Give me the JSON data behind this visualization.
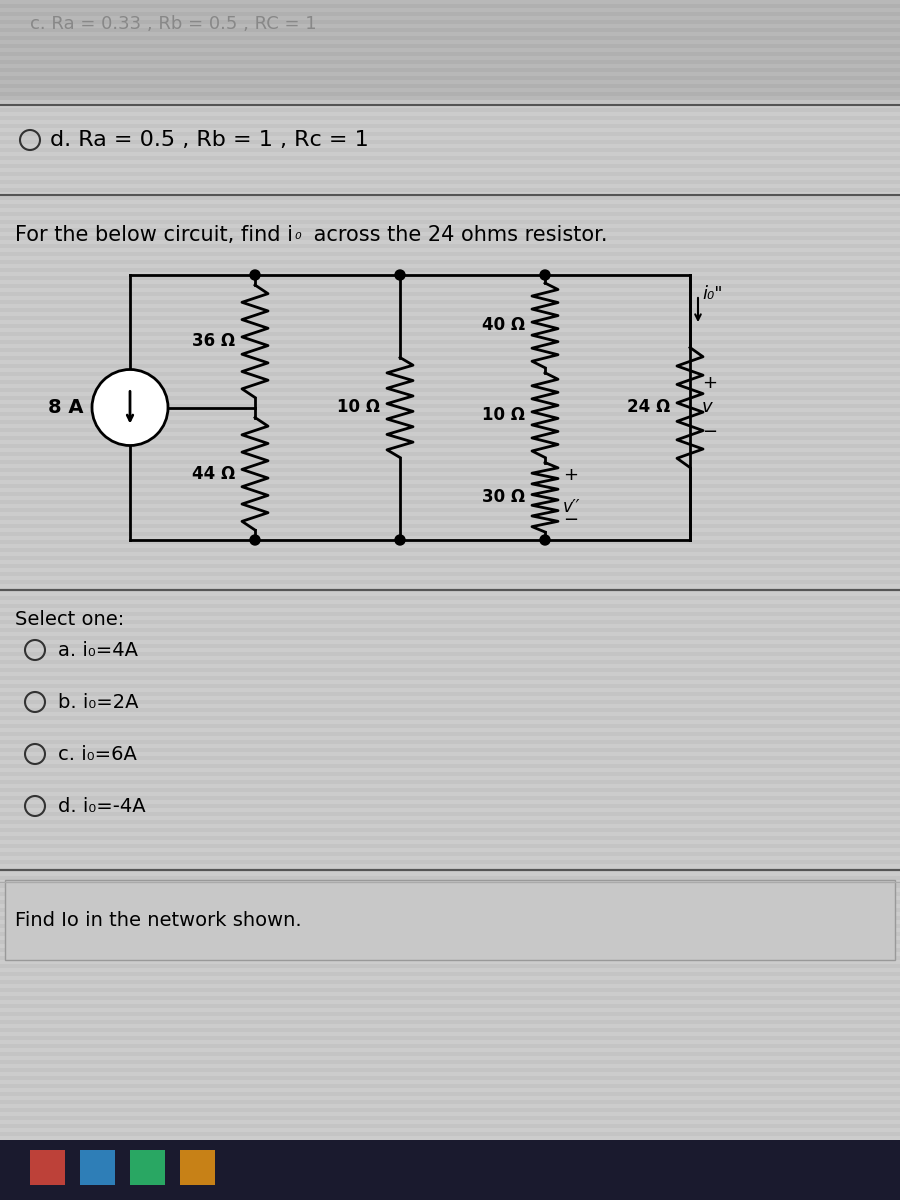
{
  "bg_color": "#c8c8c8",
  "bg_stripe_color": "#d0d0d0",
  "text_color": "#000000",
  "top_text_partial": "c. Ra = 0.33 , Rb = 0.5 , RC = 1",
  "top_option_text": "d. Ra = 0.5 , Rb = 1 , Rc = 1",
  "question_text": "For the below circuit, find i₀ across the 24 ohms resistor.",
  "select_one_text": "Select one:",
  "options": [
    "a. i₀=4A",
    "b. i₀=2A",
    "c. i₀=6A",
    "d. i₀=-4A"
  ],
  "footer_text": "Find Io in the network shown.",
  "resistor_labels": {
    "r36": "36 Ω",
    "r44": "44 Ω",
    "r10L": "10 Ω",
    "r40": "40 Ω",
    "r10R": "10 Ω",
    "r30": "30 Ω",
    "r24": "24 Ω"
  },
  "source_label": "8 A",
  "io_label": "i₀\"",
  "v_label": "v",
  "vo_label": "v′′"
}
